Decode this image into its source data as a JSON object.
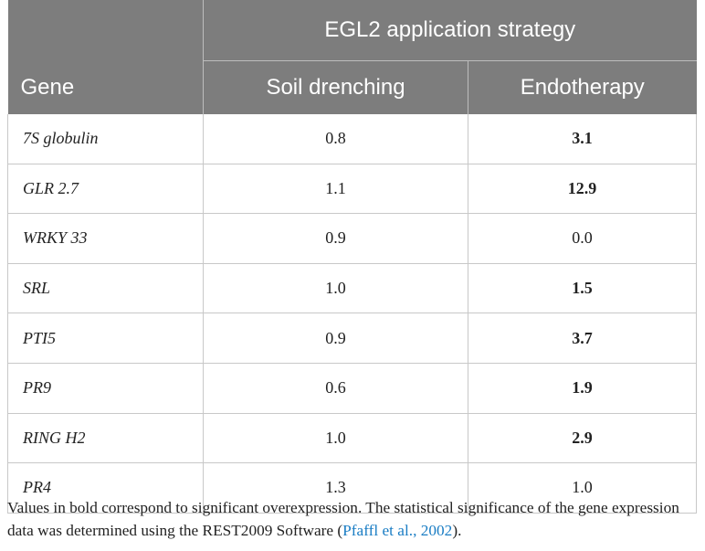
{
  "table": {
    "group_header": "EGL2 application strategy",
    "columns": [
      "Gene",
      "Soil drenching",
      "Endotherapy"
    ],
    "rows": [
      {
        "cells": [
          "7S globulin",
          "0.8",
          "3.1"
        ],
        "significant": true
      },
      {
        "cells": [
          "GLR 2.7",
          "1.1",
          "12.9"
        ],
        "significant": true
      },
      {
        "cells": [
          "WRKY 33",
          "0.9",
          "0.0"
        ],
        "significant": false
      },
      {
        "cells": [
          "SRL",
          "1.0",
          "1.5"
        ],
        "significant": true
      },
      {
        "cells": [
          "PTI5",
          "0.9",
          "3.7"
        ],
        "significant": true
      },
      {
        "cells": [
          "PR9",
          "0.6",
          "1.9"
        ],
        "significant": true
      },
      {
        "cells": [
          "RING H2",
          "1.0",
          "2.9"
        ],
        "significant": true
      },
      {
        "cells": [
          "PR4",
          "1.3",
          "1.0"
        ],
        "significant": false
      }
    ]
  },
  "footnote": {
    "text_before": "Values in bold correspond to significant overexpression. The statistical significance of the gene expression data was determined using the REST2009 Software (",
    "link": "Pfaffl et al., 2002",
    "text_after": ")."
  }
}
